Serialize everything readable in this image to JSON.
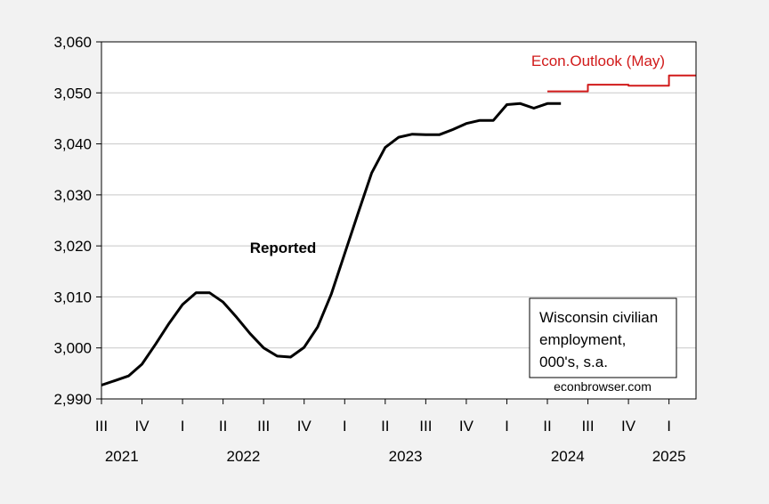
{
  "chart_data": {
    "type": "line",
    "title": "",
    "xlabel": "",
    "ylabel": "",
    "ylim": [
      2990,
      3060
    ],
    "yticks": [
      "3,060",
      "3,050",
      "3,040",
      "3,030",
      "3,020",
      "3,010",
      "3,000",
      "2,990"
    ],
    "ytick_values": [
      3060,
      3050,
      3040,
      3030,
      3020,
      3010,
      3000,
      2990
    ],
    "grid": true,
    "quarter_ticks": [
      {
        "label": "III",
        "year": 2021,
        "q": 3
      },
      {
        "label": "IV",
        "year": 2021,
        "q": 4
      },
      {
        "label": "I",
        "year": 2022,
        "q": 1
      },
      {
        "label": "II",
        "year": 2022,
        "q": 2
      },
      {
        "label": "III",
        "year": 2022,
        "q": 3
      },
      {
        "label": "IV",
        "year": 2022,
        "q": 4
      },
      {
        "label": "I",
        "year": 2023,
        "q": 1
      },
      {
        "label": "II",
        "year": 2023,
        "q": 2
      },
      {
        "label": "III",
        "year": 2023,
        "q": 3
      },
      {
        "label": "IV",
        "year": 2023,
        "q": 4
      },
      {
        "label": "I",
        "year": 2024,
        "q": 1
      },
      {
        "label": "II",
        "year": 2024,
        "q": 2
      },
      {
        "label": "III",
        "year": 2024,
        "q": 3
      },
      {
        "label": "IV",
        "year": 2024,
        "q": 4
      },
      {
        "label": "I",
        "year": 2025,
        "q": 1
      }
    ],
    "year_labels": [
      {
        "label": "2021",
        "year": 2021
      },
      {
        "label": "2022",
        "year": 2022
      },
      {
        "label": "2023",
        "year": 2023
      },
      {
        "label": "2024",
        "year": 2024
      },
      {
        "label": "2025",
        "year": 2025
      }
    ],
    "series": [
      {
        "name": "Reported",
        "color": "#000000",
        "x": [
          "2021-07",
          "2021-08",
          "2021-09",
          "2021-10",
          "2021-11",
          "2021-12",
          "2022-01",
          "2022-02",
          "2022-03",
          "2022-04",
          "2022-05",
          "2022-06",
          "2022-07",
          "2022-08",
          "2022-09",
          "2022-10",
          "2022-11",
          "2022-12",
          "2023-01",
          "2023-02",
          "2023-03",
          "2023-04",
          "2023-05",
          "2023-06",
          "2023-07",
          "2023-08",
          "2023-09",
          "2023-10",
          "2023-11",
          "2023-12",
          "2024-01",
          "2024-02",
          "2024-03",
          "2024-04",
          "2024-05"
        ],
        "values": [
          2992.7,
          2993.6,
          2994.5,
          2996.8,
          3000.7,
          3004.8,
          3008.5,
          3010.8,
          3010.8,
          3009.0,
          3006.0,
          3002.8,
          3000.0,
          2998.4,
          2998.2,
          3000.1,
          3004.1,
          3010.5,
          3018.5,
          3026.5,
          3034.3,
          3039.3,
          3041.3,
          3041.9,
          3041.8,
          3041.8,
          3042.8,
          3044.0,
          3044.6,
          3044.6,
          3047.7,
          3047.9,
          3047.0,
          3047.9,
          3047.9
        ]
      },
      {
        "name": "Econ.Outlook (May)",
        "color": "#d11a1a",
        "x": [
          "2024-04",
          "2024-05",
          "2024-06",
          "2024-07",
          "2024-08",
          "2024-09",
          "2024-10",
          "2024-11",
          "2024-12",
          "2025-01",
          "2025-02",
          "2025-03"
        ],
        "values": [
          3050.3,
          3050.3,
          3050.3,
          3051.6,
          3051.6,
          3051.6,
          3051.4,
          3051.4,
          3051.4,
          3053.4,
          3053.4,
          3053.4
        ]
      }
    ],
    "annotations": [
      {
        "text": "Reported"
      },
      {
        "text": "Econ.Outlook (May)"
      }
    ],
    "legend_box": [
      "Wisconsin civilian",
      "employment,",
      "000's, s.a."
    ],
    "source": "econbrowser.com"
  }
}
